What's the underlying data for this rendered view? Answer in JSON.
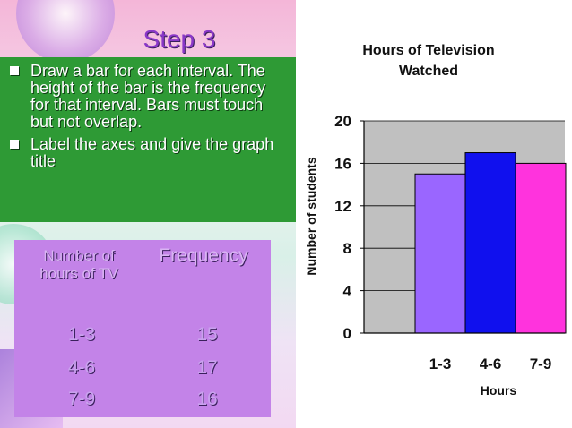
{
  "slide": {
    "title": "Step 3",
    "bullets": [
      "Draw a bar for each interval. The height of the bar is the frequency for that interval. Bars must touch but not overlap.",
      "Label the axes and give the graph title"
    ]
  },
  "table": {
    "header_interval": "Number of hours of TV",
    "header_frequency": "Frequency",
    "rows": [
      {
        "interval": "1-3",
        "frequency": "15"
      },
      {
        "interval": "4-6",
        "frequency": "17"
      },
      {
        "interval": "7-9",
        "frequency": "16"
      }
    ]
  },
  "chart_data": {
    "type": "bar",
    "title": "Hours of Television Watched",
    "categories": [
      "1-3",
      "4-6",
      "7-9"
    ],
    "values": [
      15,
      17,
      16
    ],
    "colors": [
      "#9a66ff",
      "#1010ee",
      "#ff33dd"
    ],
    "xlabel": "Hours",
    "ylabel": "Number of students",
    "ylim": [
      0,
      20
    ],
    "yticks": [
      0,
      4,
      8,
      12,
      16,
      20
    ],
    "grid": true,
    "legend": "none"
  }
}
